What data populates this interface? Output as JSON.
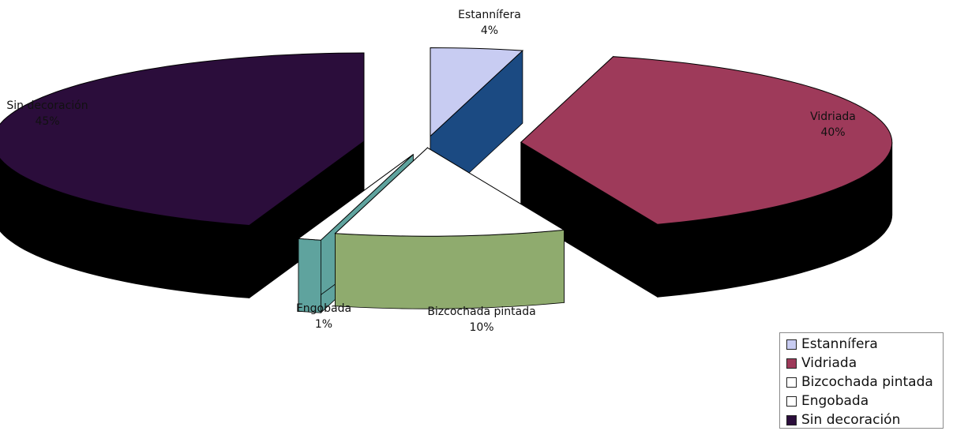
{
  "chart_data": {
    "type": "pie",
    "style": "3d-exploded",
    "slices": [
      {
        "name": "Estannífera",
        "value": 4,
        "label": "4%",
        "color": "#c8ccf2"
      },
      {
        "name": "Vidriada",
        "value": 40,
        "label": "40%",
        "color": "#9e3a5a"
      },
      {
        "name": "Bizcochada pintada",
        "value": 10,
        "label": "10%",
        "color": "#ffffff"
      },
      {
        "name": "Engobada",
        "value": 1,
        "label": "1%",
        "color": "#ffffff"
      },
      {
        "name": "Sin decoración",
        "value": 45,
        "label": "45%",
        "color": "#2b0d3b"
      }
    ],
    "side_colors": {
      "Estannífera": "#1b4a82",
      "Vidriada": "#000000",
      "Bizcochada pintada": "#8fab6e",
      "Engobada": "#5fa39e",
      "Sin decoración": "#000000"
    },
    "legend": {
      "position": "bottom-right",
      "items": [
        "Estannífera",
        "Vidriada",
        "Bizcochada pintada",
        "Engobada",
        "Sin decoración"
      ]
    }
  }
}
